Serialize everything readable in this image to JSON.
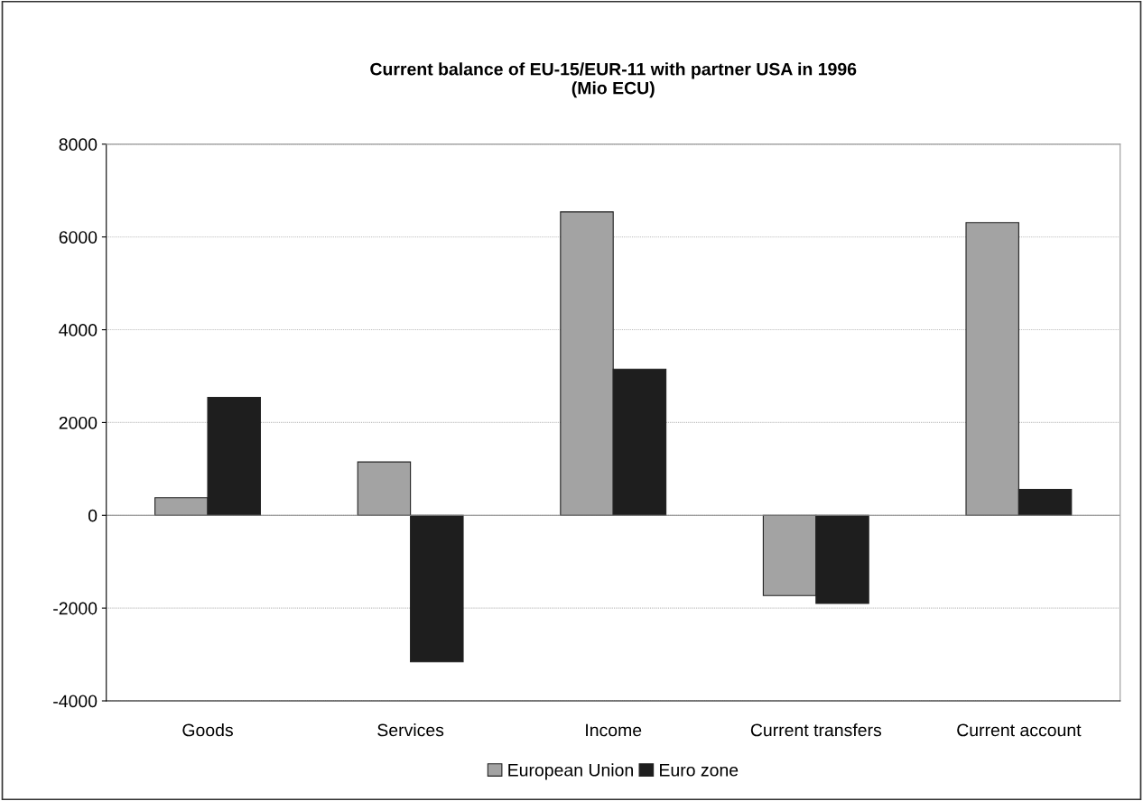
{
  "chart_data": {
    "type": "bar",
    "title": "Current balance of EU-15/EUR-11 with partner USA in 1996\n(Mio ECU)",
    "categories": [
      "Goods",
      "Services",
      "Income",
      "Current transfers",
      "Current account"
    ],
    "series": [
      {
        "name": "European Union",
        "color": "#a3a3a3",
        "values": [
          380,
          1150,
          6540,
          -1730,
          6310
        ]
      },
      {
        "name": "Euro zone",
        "color": "#1e1e1e",
        "values": [
          2540,
          -3160,
          3150,
          -1900,
          560
        ]
      }
    ],
    "ylim": [
      -4000,
      8000
    ],
    "yticks": [
      -4000,
      -2000,
      0,
      2000,
      4000,
      6000,
      8000
    ],
    "grid": "y",
    "legend": "bottom"
  }
}
